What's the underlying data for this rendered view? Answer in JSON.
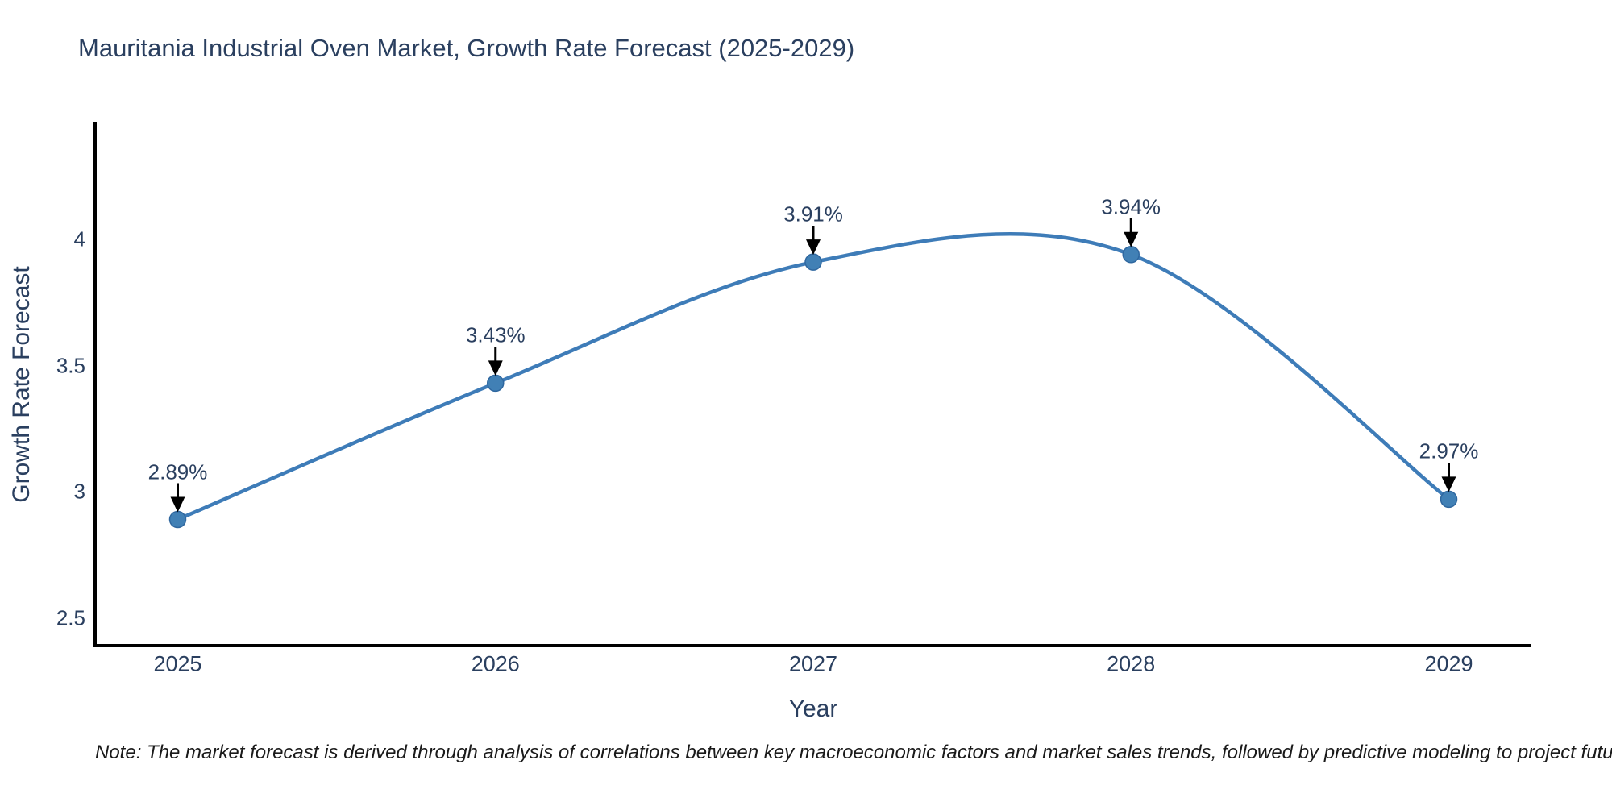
{
  "page": {
    "background": "#ffffff"
  },
  "note": "Note: The market forecast is derived through analysis of correlations between key macroeconomic factors and market sales trends, followed by predictive modeling to project future sales",
  "chart_data": {
    "type": "line",
    "title": "Mauritania Industrial Oven Market, Growth Rate Forecast (2025-2029)",
    "xlabel": "Year",
    "ylabel": "Growth Rate Forecast",
    "x": [
      2025,
      2026,
      2027,
      2028,
      2029
    ],
    "series": [
      {
        "name": "Growth Rate Forecast",
        "values": [
          2.89,
          3.43,
          3.91,
          3.94,
          2.97
        ]
      }
    ],
    "point_labels": [
      "2.89%",
      "3.43%",
      "3.91%",
      "3.94%",
      "2.97%"
    ],
    "x_tick_labels": [
      "2025",
      "2026",
      "2027",
      "2028",
      "2029"
    ],
    "y_ticks": [
      2.5,
      3,
      3.5,
      4
    ],
    "y_tick_labels": [
      "2.5",
      "3",
      "3.5",
      "4"
    ],
    "x_range": [
      2024.74,
      2029.26
    ],
    "y_range": [
      2.39,
      4.46
    ],
    "line_shape": "spline",
    "grid": false,
    "legend": "none",
    "colors": {
      "line": "#3e7cb8",
      "marker": "#4180b5",
      "marker_edge": "#2f679f",
      "axis_line": "#000000",
      "arrow": "#000000",
      "text": "#2a3f5f",
      "note": "#1a1a1a"
    }
  }
}
